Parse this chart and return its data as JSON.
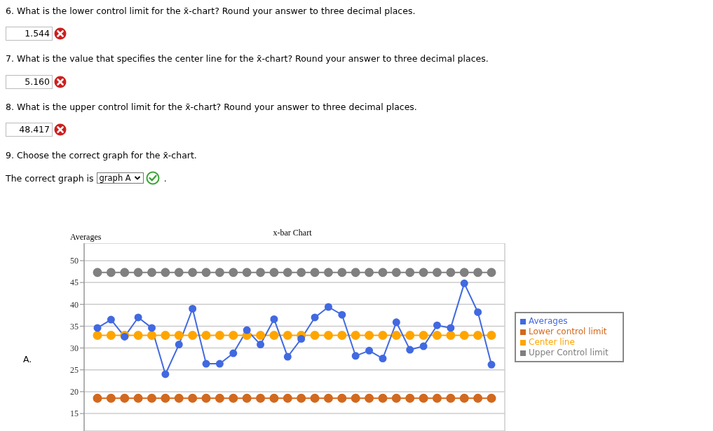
{
  "chart_data": {
    "type": "line",
    "title": "x-bar Chart",
    "ylabel": "Averages",
    "categories": [
      null,
      null,
      null,
      null,
      null,
      null,
      null,
      null,
      null,
      null,
      null,
      null,
      null,
      null,
      null,
      null,
      null,
      null,
      null,
      null,
      null,
      null,
      null,
      null,
      null,
      null,
      null,
      null,
      null,
      null
    ],
    "series": [
      {
        "name": "Averages",
        "color": "#4169e1",
        "values": [
          34.6,
          36.5,
          32.6,
          37.0,
          34.6,
          24.0,
          30.8,
          39.0,
          26.4,
          26.4,
          28.8,
          34.1,
          30.8,
          36.6,
          28.0,
          32.1,
          37.0,
          39.4,
          37.6,
          28.2,
          29.4,
          27.6,
          35.9,
          29.6,
          30.4,
          35.2,
          34.6,
          44.8,
          38.2,
          26.2
        ]
      },
      {
        "name": "Lower control limit",
        "color": "#d2691e",
        "values": [
          18.5,
          18.5,
          18.5,
          18.5,
          18.5,
          18.5,
          18.5,
          18.5,
          18.5,
          18.5,
          18.5,
          18.5,
          18.5,
          18.5,
          18.5,
          18.5,
          18.5,
          18.5,
          18.5,
          18.5,
          18.5,
          18.5,
          18.5,
          18.5,
          18.5,
          18.5,
          18.5,
          18.5,
          18.5,
          18.5
        ]
      },
      {
        "name": "Center line",
        "color": "#ffa500",
        "values": [
          32.9,
          32.9,
          32.9,
          32.9,
          32.9,
          32.9,
          32.9,
          32.9,
          32.9,
          32.9,
          32.9,
          32.9,
          32.9,
          32.9,
          32.9,
          32.9,
          32.9,
          32.9,
          32.9,
          32.9,
          32.9,
          32.9,
          32.9,
          32.9,
          32.9,
          32.9,
          32.9,
          32.9,
          32.9,
          32.9
        ]
      },
      {
        "name": "Upper Control limit",
        "color": "#808080",
        "values": [
          47.3,
          47.3,
          47.3,
          47.3,
          47.3,
          47.3,
          47.3,
          47.3,
          47.3,
          47.3,
          47.3,
          47.3,
          47.3,
          47.3,
          47.3,
          47.3,
          47.3,
          47.3,
          47.3,
          47.3,
          47.3,
          47.3,
          47.3,
          47.3,
          47.3,
          47.3,
          47.3,
          47.3,
          47.3,
          47.3
        ]
      }
    ],
    "ylim": [
      11,
      54
    ],
    "yticks": [
      15,
      20,
      25,
      30,
      35,
      40,
      45,
      50
    ],
    "grid": true,
    "legend": "right",
    "tick_labels": "y",
    "marker": "circle",
    "line_style": "solid",
    "annotations": [
      "6. What is the lower control limit for the x̄-chart? Round your answer to three decimal places.",
      "1.544",
      "7. What is the value that specifies the center line for the x̄-chart? Round your answer to three decimal places.",
      "5.160",
      "8. What is the upper control limit for the x̄-chart? Round your answer to three decimal places.",
      "48.417",
      "9. Choose the correct graph for the x̄-chart.",
      "The correct graph is",
      "graph A",
      ".",
      "A."
    ]
  }
}
